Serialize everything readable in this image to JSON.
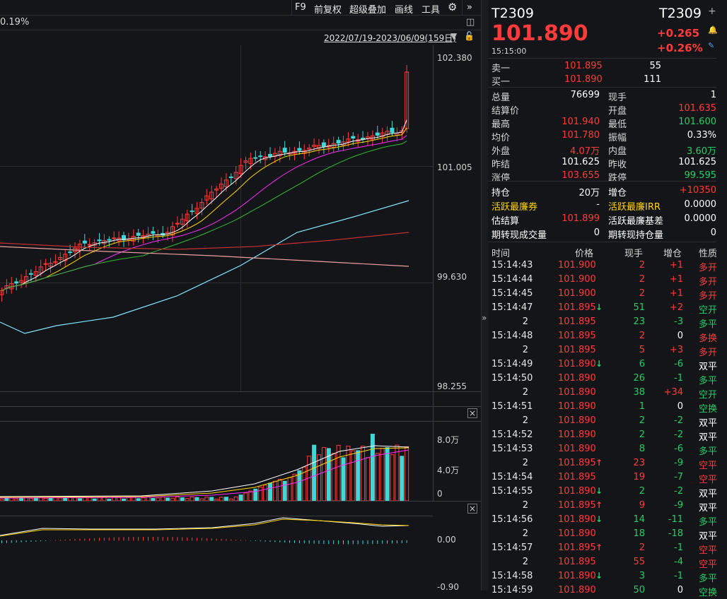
{
  "toolbar": {
    "f9": "F9",
    "adjust": "前复权",
    "overlay": "超级叠加",
    "draw": "画线",
    "tools": "工具",
    "more": "»"
  },
  "chart": {
    "pct_change": "0.19%",
    "date_range": "2022/07/19-2023/06/09(159日)",
    "price_ticks": [
      "102.380",
      "101.005",
      "99.630",
      "98.255"
    ],
    "volume_ticks": [
      "8.0万",
      "4.0万",
      "0"
    ],
    "macd_ticks": [
      "0.00",
      "-0.90"
    ]
  },
  "quote": {
    "code_left": "T2309",
    "code_right": "T2309",
    "last_price": "101.890",
    "change": "+0.265",
    "change_pct": "+0.26%",
    "time": "15:15:00",
    "order_book": [
      {
        "label": "卖一",
        "price": "101.895",
        "vol": "55"
      },
      {
        "label": "买一",
        "price": "101.890",
        "vol": "111"
      }
    ],
    "stats": [
      {
        "l1": "总量",
        "v1": "76699",
        "c1": "white",
        "l2": "现手",
        "v2": "1",
        "c2": "white"
      },
      {
        "l1": "结算价",
        "v1": "",
        "c1": "white",
        "l2": "开盘",
        "v2": "101.635",
        "c2": "red"
      },
      {
        "l1": "最高",
        "v1": "101.940",
        "c1": "red",
        "l2": "最低",
        "v2": "101.600",
        "c2": "green"
      },
      {
        "l1": "均价",
        "v1": "101.780",
        "c1": "red",
        "l2": "振幅",
        "v2": "0.33%",
        "c2": "white"
      },
      {
        "l1": "外盘",
        "v1": "4.07万",
        "c1": "red",
        "l2": "内盘",
        "v2": "3.60万",
        "c2": "green"
      },
      {
        "l1": "昨结",
        "v1": "101.625",
        "c1": "white",
        "l2": "昨收",
        "v2": "101.625",
        "c2": "white"
      },
      {
        "l1": "涨停",
        "v1": "103.655",
        "c1": "red",
        "l2": "跌停",
        "v2": "99.595",
        "c2": "green"
      }
    ],
    "extra": [
      {
        "l1": "持仓",
        "v1": "20万",
        "c1": "white",
        "y1": "white",
        "l2": "增仓",
        "v2": "+10350",
        "c2": "red",
        "y2": "white"
      },
      {
        "l1": "活跃最廉券",
        "v1": "-",
        "c1": "white",
        "y1": "yellow",
        "l2": "活跃最廉IRR",
        "v2": "0.0000",
        "c2": "white",
        "y2": "yellow"
      },
      {
        "l1": "估结算",
        "v1": "101.899",
        "c1": "red",
        "y1": "white",
        "l2": "活跃最廉基差",
        "v2": "0.0000",
        "c2": "white",
        "y2": "white"
      },
      {
        "l1": "期转现成交量",
        "v1": "0",
        "c1": "white",
        "y1": "white",
        "l2": "期转现持仓量",
        "v2": "0",
        "c2": "white",
        "y2": "white"
      }
    ],
    "ticks_header": {
      "time": "时间",
      "price": "价格",
      "vol": "现手",
      "oi": "增仓",
      "nature": "性质"
    },
    "ticks": [
      {
        "time": "15:14:43",
        "price": "101.900",
        "pc": "red",
        "arrow": "",
        "vol": "2",
        "vc": "red",
        "oi": "+1",
        "oc": "red",
        "nat": "多开",
        "nc": "red"
      },
      {
        "time": "15:14:44",
        "price": "101.900",
        "pc": "red",
        "arrow": "",
        "vol": "2",
        "vc": "red",
        "oi": "+1",
        "oc": "red",
        "nat": "多开",
        "nc": "red"
      },
      {
        "time": "15:14:45",
        "price": "101.900",
        "pc": "red",
        "arrow": "",
        "vol": "2",
        "vc": "red",
        "oi": "+1",
        "oc": "red",
        "nat": "多开",
        "nc": "red"
      },
      {
        "time": "15:14:47",
        "price": "101.895",
        "pc": "red",
        "arrow": "down",
        "vol": "51",
        "vc": "green",
        "oi": "+2",
        "oc": "red",
        "nat": "空开",
        "nc": "green"
      },
      {
        "time": "2",
        "price": "101.895",
        "pc": "red",
        "arrow": "",
        "vol": "23",
        "vc": "green",
        "oi": "-3",
        "oc": "green",
        "nat": "多平",
        "nc": "green"
      },
      {
        "time": "15:14:48",
        "price": "101.895",
        "pc": "red",
        "arrow": "",
        "vol": "2",
        "vc": "red",
        "oi": "0",
        "oc": "white",
        "nat": "多换",
        "nc": "red"
      },
      {
        "time": "2",
        "price": "101.895",
        "pc": "red",
        "arrow": "",
        "vol": "5",
        "vc": "red",
        "oi": "+3",
        "oc": "red",
        "nat": "多开",
        "nc": "red"
      },
      {
        "time": "15:14:49",
        "price": "101.890",
        "pc": "red",
        "arrow": "down",
        "vol": "6",
        "vc": "green",
        "oi": "-6",
        "oc": "green",
        "nat": "双平",
        "nc": "white"
      },
      {
        "time": "15:14:50",
        "price": "101.890",
        "pc": "red",
        "arrow": "",
        "vol": "26",
        "vc": "green",
        "oi": "-1",
        "oc": "green",
        "nat": "多平",
        "nc": "green"
      },
      {
        "time": "2",
        "price": "101.890",
        "pc": "red",
        "arrow": "",
        "vol": "38",
        "vc": "green",
        "oi": "+34",
        "oc": "red",
        "nat": "空开",
        "nc": "green"
      },
      {
        "time": "15:14:51",
        "price": "101.890",
        "pc": "red",
        "arrow": "",
        "vol": "1",
        "vc": "green",
        "oi": "0",
        "oc": "white",
        "nat": "空换",
        "nc": "green"
      },
      {
        "time": "2",
        "price": "101.890",
        "pc": "red",
        "arrow": "",
        "vol": "2",
        "vc": "green",
        "oi": "-2",
        "oc": "green",
        "nat": "双平",
        "nc": "white"
      },
      {
        "time": "15:14:52",
        "price": "101.890",
        "pc": "red",
        "arrow": "",
        "vol": "2",
        "vc": "green",
        "oi": "-2",
        "oc": "green",
        "nat": "双平",
        "nc": "white"
      },
      {
        "time": "15:14:53",
        "price": "101.890",
        "pc": "red",
        "arrow": "",
        "vol": "8",
        "vc": "green",
        "oi": "-6",
        "oc": "green",
        "nat": "多平",
        "nc": "green"
      },
      {
        "time": "2",
        "price": "101.895",
        "pc": "red",
        "arrow": "up",
        "vol": "23",
        "vc": "red",
        "oi": "-9",
        "oc": "green",
        "nat": "空平",
        "nc": "red"
      },
      {
        "time": "15:14:54",
        "price": "101.895",
        "pc": "red",
        "arrow": "",
        "vol": "19",
        "vc": "red",
        "oi": "-7",
        "oc": "green",
        "nat": "空平",
        "nc": "red"
      },
      {
        "time": "15:14:55",
        "price": "101.890",
        "pc": "red",
        "arrow": "down",
        "vol": "2",
        "vc": "green",
        "oi": "-2",
        "oc": "green",
        "nat": "双平",
        "nc": "white"
      },
      {
        "time": "2",
        "price": "101.895",
        "pc": "red",
        "arrow": "up",
        "vol": "9",
        "vc": "red",
        "oi": "-9",
        "oc": "green",
        "nat": "双平",
        "nc": "white"
      },
      {
        "time": "15:14:56",
        "price": "101.890",
        "pc": "red",
        "arrow": "down",
        "vol": "14",
        "vc": "green",
        "oi": "-11",
        "oc": "green",
        "nat": "多平",
        "nc": "green"
      },
      {
        "time": "2",
        "price": "101.890",
        "pc": "red",
        "arrow": "",
        "vol": "18",
        "vc": "green",
        "oi": "-18",
        "oc": "green",
        "nat": "双平",
        "nc": "white"
      },
      {
        "time": "15:14:57",
        "price": "101.895",
        "pc": "red",
        "arrow": "up",
        "vol": "2",
        "vc": "red",
        "oi": "-1",
        "oc": "green",
        "nat": "空平",
        "nc": "red"
      },
      {
        "time": "2",
        "price": "101.895",
        "pc": "red",
        "arrow": "",
        "vol": "55",
        "vc": "red",
        "oi": "-4",
        "oc": "green",
        "nat": "空平",
        "nc": "red"
      },
      {
        "time": "15:14:58",
        "price": "101.890",
        "pc": "red",
        "arrow": "down",
        "vol": "3",
        "vc": "green",
        "oi": "-1",
        "oc": "green",
        "nat": "多平",
        "nc": "green"
      },
      {
        "time": "15:14:59",
        "price": "101.890",
        "pc": "red",
        "arrow": "",
        "vol": "50",
        "vc": "green",
        "oi": "0",
        "oc": "white",
        "nat": "空换",
        "nc": "green"
      }
    ]
  },
  "colors": {
    "up": "#ff3b3b",
    "down": "#22d06a",
    "bg": "#141518",
    "ma5": "#ffffff",
    "ma10": "#ffd700",
    "ma20": "#ff2bff",
    "ma30": "#2fbf2f",
    "ma60": "#7fe7ff",
    "ma120": "#c03030",
    "ma250": "#f0a0a0"
  }
}
